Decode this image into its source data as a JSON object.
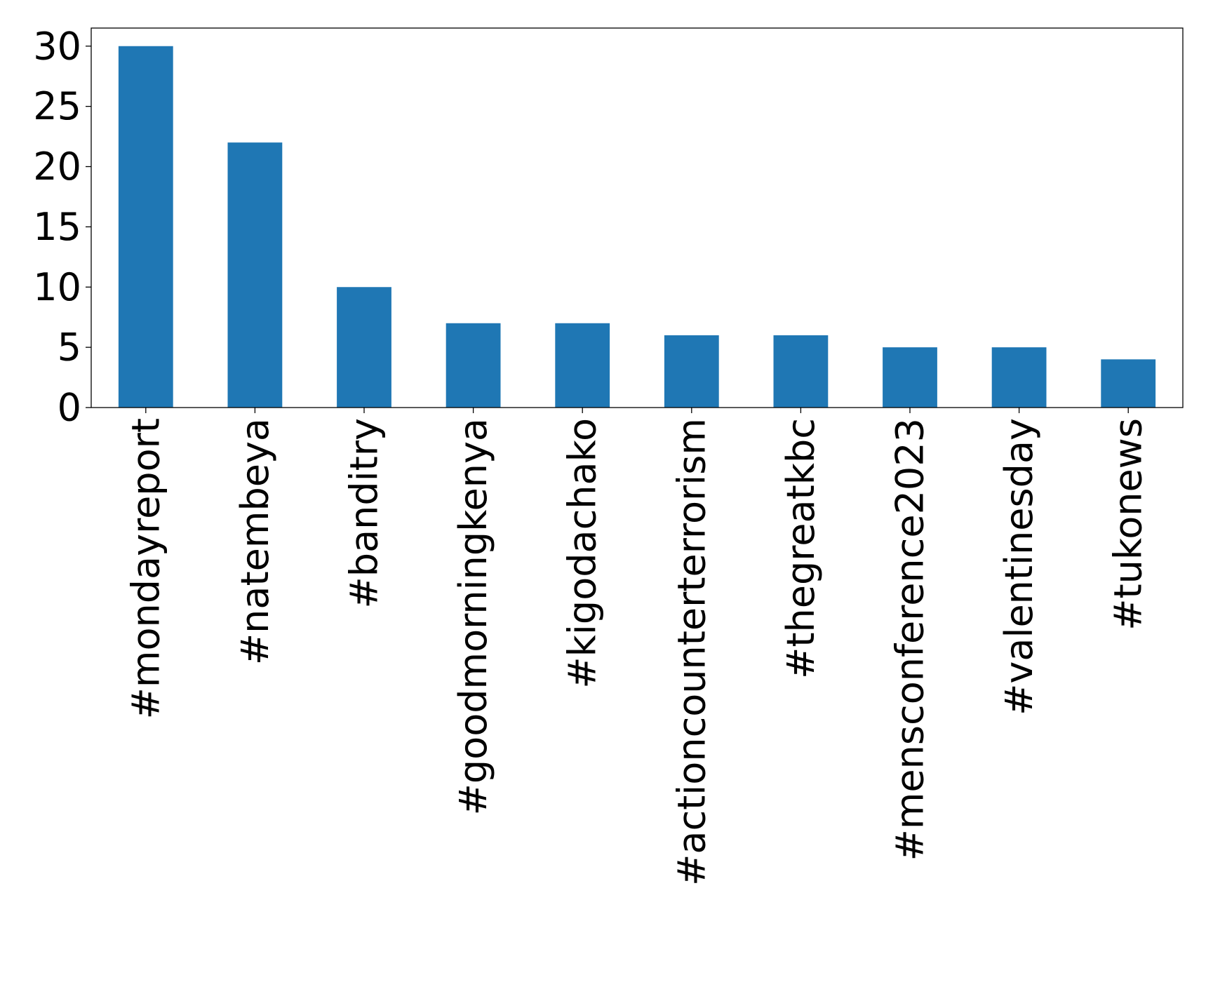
{
  "chart_data": {
    "type": "bar",
    "title": "",
    "xlabel": "",
    "ylabel": "",
    "categories": [
      "#mondayreport",
      "#natembeya",
      "#banditry",
      "#goodmorningkenya",
      "#kigodachako",
      "#actioncounterterrorism",
      "#thegreatkbc",
      "#mensconference2023",
      "#valentinesday",
      "#tukonews"
    ],
    "values": [
      30,
      22,
      10,
      7,
      7,
      6,
      6,
      5,
      5,
      4
    ],
    "ylim": [
      0,
      31.5
    ],
    "yticks": [
      0,
      5,
      10,
      15,
      20,
      25,
      30
    ],
    "grid": false,
    "legend": "none",
    "bar_color": "#1f77b4"
  }
}
